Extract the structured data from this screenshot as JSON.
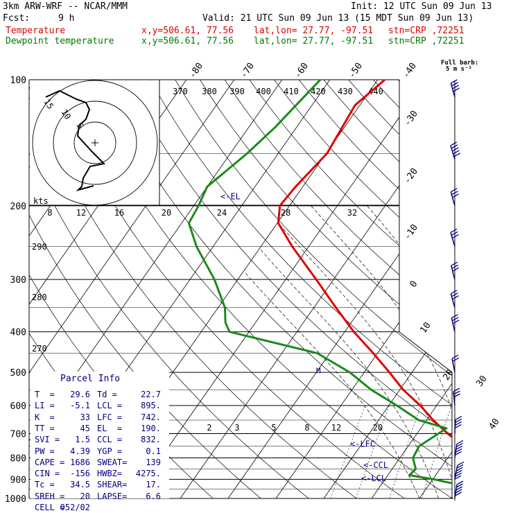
{
  "header": {
    "model": "3km ARW-WRF -- NCAR/MMM",
    "init": "Init: 12 UTC Sun 09 Jun 13",
    "fcst_label": "Fcst:",
    "fcst_value": "9 h",
    "valid": "Valid: 21 UTC Sun 09 Jun 13 (15 MDT Sun 09 Jun 13)",
    "temp_label": "Temperature",
    "dew_label": "Dewpoint temperature",
    "xy_text": "x,y=506.61, 77.56",
    "latlon_text": "lat,lon= 27.77, -97.51",
    "stn_text": "stn=CRP ,72251",
    "barb_title_1": "Full barb:",
    "barb_title_2": "5 m s⁻¹"
  },
  "colors": {
    "temperature": "#e00000",
    "dewpoint": "#1a8a1a",
    "annotation": "#000080"
  },
  "chart_data": {
    "type": "line",
    "title": "",
    "pressure_levels": [
      100,
      200,
      300,
      400,
      500,
      600,
      700,
      800,
      900,
      1000
    ],
    "pressure_labels": [
      "100",
      "200",
      "300",
      "400",
      "500",
      "600",
      "700",
      "800",
      "900",
      "1000"
    ],
    "top_isotherm_labels": [
      "-80",
      "-70",
      "-60",
      "-50",
      "-40"
    ],
    "right_isotherm_labels": [
      "-30",
      "-20",
      "-10",
      "0",
      "10",
      "20",
      "30",
      "40"
    ],
    "theta_labels": [
      "370",
      "380",
      "390",
      "400",
      "410",
      "420",
      "430",
      "440"
    ],
    "mixing_ratio_labels": [
      "2",
      "3",
      "5",
      "8",
      "12",
      "20"
    ],
    "adiabat_labels": [
      "290",
      "280",
      "270"
    ],
    "series": [
      {
        "name": "Temperature",
        "points": [
          [
            100,
            -58.5
          ],
          [
            115,
            -61
          ],
          [
            150,
            -59.8
          ],
          [
            180,
            -61.5
          ],
          [
            200,
            -62
          ],
          [
            220,
            -59.8
          ],
          [
            250,
            -53.5
          ],
          [
            300,
            -43.6
          ],
          [
            350,
            -35.4
          ],
          [
            400,
            -28.1
          ],
          [
            450,
            -20.9
          ],
          [
            500,
            -14.7
          ],
          [
            550,
            -9.3
          ],
          [
            600,
            -3.4
          ],
          [
            650,
            1.4
          ],
          [
            700,
            6.4
          ],
          [
            750,
            11.5
          ],
          [
            800,
            15.5
          ],
          [
            850,
            18.8
          ],
          [
            880,
            18.8
          ],
          [
            900,
            18.2
          ],
          [
            925,
            21.5
          ],
          [
            950,
            22.9
          ],
          [
            1000,
            29.6
          ]
        ]
      },
      {
        "name": "Dewpoint temperature",
        "points": [
          [
            100,
            -72
          ],
          [
            130,
            -74.5
          ],
          [
            150,
            -76.5
          ],
          [
            180,
            -80
          ],
          [
            200,
            -79
          ],
          [
            220,
            -78.5
          ],
          [
            250,
            -73.5
          ],
          [
            300,
            -64.9
          ],
          [
            350,
            -58.6
          ],
          [
            380,
            -56.3
          ],
          [
            400,
            -54.1
          ],
          [
            450,
            -32.6
          ],
          [
            500,
            -23
          ],
          [
            550,
            -16
          ],
          [
            600,
            -8.3
          ],
          [
            650,
            -1.6
          ],
          [
            680,
            5.4
          ],
          [
            700,
            4.5
          ],
          [
            750,
            2.3
          ],
          [
            800,
            2.7
          ],
          [
            850,
            4.9
          ],
          [
            880,
            4.5
          ],
          [
            900,
            10.2
          ],
          [
            950,
            21.1
          ],
          [
            1000,
            22.7
          ]
        ]
      }
    ],
    "parcel_info": {
      "title": "Parcel Info",
      "rows": [
        [
          "T  =",
          "29.6",
          "Td =",
          "22.7"
        ],
        [
          "LI =",
          "-5.1",
          "LCL =",
          "895."
        ],
        [
          "K  =",
          "33",
          "LFC =",
          "742."
        ],
        [
          "TT =",
          "45",
          "EL  =",
          "190."
        ],
        [
          "SVI =",
          "1.5",
          "CCL =",
          "832."
        ],
        [
          "PW =",
          "4.39",
          "YGP =",
          "0.1"
        ],
        [
          "CAPE =",
          "1686",
          "SWEAT=",
          "139"
        ],
        [
          "CIN =",
          "-156",
          "HWBZ=",
          "4275."
        ],
        [
          "Tc =",
          "34.5",
          "SHEAR=",
          "17."
        ],
        [
          "SREH =",
          "20",
          "LAPSE=",
          "6.6"
        ],
        [
          "CELL =",
          "052/02",
          "",
          ""
        ]
      ]
    },
    "level_markers": [
      {
        "label": "<-EL",
        "pressure": 190
      },
      {
        "label": "<-LFC",
        "pressure": 742
      },
      {
        "label": "<-CCL",
        "pressure": 832
      },
      {
        "label": "<-LCL",
        "pressure": 895
      }
    ],
    "freezing_marker": {
      "label": "M",
      "pressure": 495
    },
    "hodograph": {
      "unit_label": "kts",
      "axis_labels": [
        "8",
        "12",
        "16",
        "20",
        "24",
        "28",
        "32"
      ],
      "ring_labels": [
        "15",
        "10",
        "5"
      ]
    },
    "winds": [
      {
        "p": 110,
        "spd": 4,
        "dir": 250
      },
      {
        "p": 155,
        "spd": 5,
        "dir": 270
      },
      {
        "p": 200,
        "spd": 3,
        "dir": 290
      },
      {
        "p": 250,
        "spd": 3,
        "dir": 260
      },
      {
        "p": 300,
        "spd": 3,
        "dir": 240
      },
      {
        "p": 350,
        "spd": 3,
        "dir": 250
      },
      {
        "p": 400,
        "spd": 3,
        "dir": 230
      },
      {
        "p": 500,
        "spd": 2,
        "dir": 220
      },
      {
        "p": 600,
        "spd": 3,
        "dir": 200
      },
      {
        "p": 700,
        "spd": 4,
        "dir": 170
      },
      {
        "p": 800,
        "spd": 5,
        "dir": 150
      },
      {
        "p": 900,
        "spd": 6,
        "dir": 140
      },
      {
        "p": 1000,
        "spd": 5,
        "dir": 150
      }
    ]
  }
}
